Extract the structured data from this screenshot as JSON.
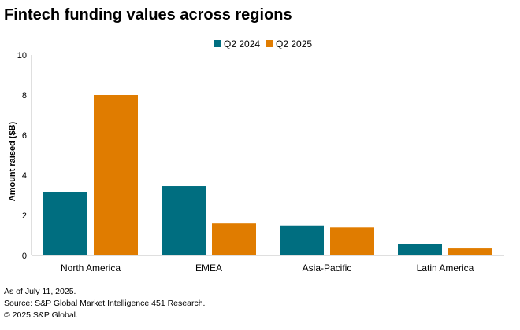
{
  "title": "Fintech funding values across regions",
  "footer": {
    "note": "As of July 11, 2025.",
    "source": "Source: S&P Global Market Intelligence 451 Research.",
    "copyright": "© 2025 S&P Global."
  },
  "colors": {
    "series_1": "#006e80",
    "series_2": "#e07c00",
    "axis": "#bfbfbf"
  },
  "chart_data": {
    "type": "bar",
    "title": "Fintech funding values across regions",
    "categories": [
      "North America",
      "EMEA",
      "Asia-Pacific",
      "Latin America"
    ],
    "series": [
      {
        "name": "Q2 2024",
        "values": [
          3.15,
          3.45,
          1.5,
          0.55
        ]
      },
      {
        "name": "Q2 2025",
        "values": [
          8.0,
          1.6,
          1.4,
          0.35
        ]
      }
    ],
    "xlabel": "",
    "ylabel": "Amount raised ($B)",
    "ylim": [
      0,
      10
    ],
    "yticks": [
      0,
      2,
      4,
      6,
      8,
      10
    ],
    "grid": false,
    "legend": "top-center"
  }
}
